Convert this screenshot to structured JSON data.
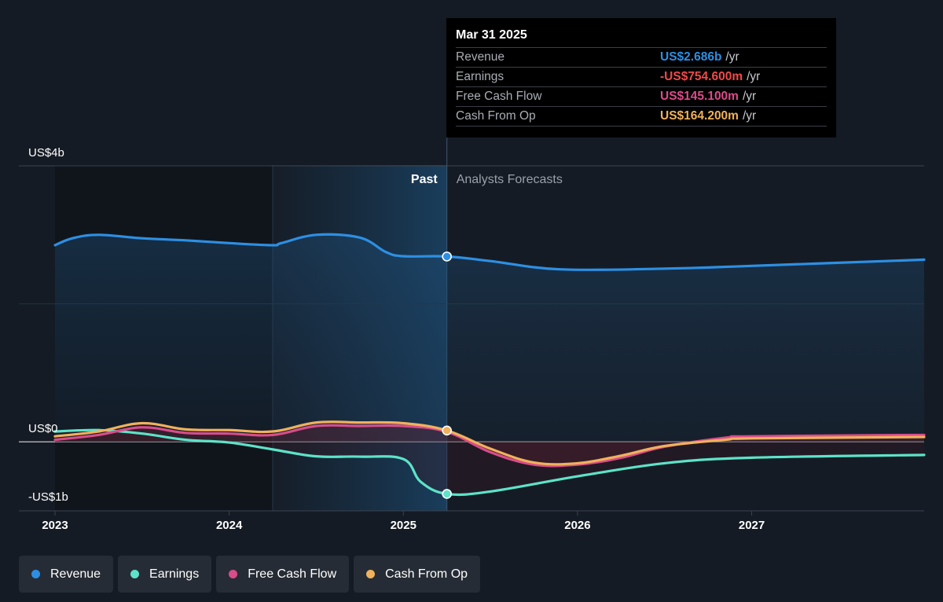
{
  "chart_data": {
    "type": "line",
    "y_axis": {
      "tick_labels": [
        "US$4b",
        "US$0",
        "-US$1b"
      ],
      "ylim": [
        -1000,
        4000
      ],
      "unit": "US$m"
    },
    "x_axis": {
      "tick_labels": [
        "2023",
        "2024",
        "2025",
        "2026",
        "2027"
      ],
      "xlim": [
        2023.0,
        2027.99
      ]
    },
    "regions": {
      "past_label": "Past",
      "forecast_label": "Analysts Forecasts",
      "divider_x": 2025.25
    },
    "series": [
      {
        "name": "Revenue",
        "color": "#2d8fe3",
        "x": [
          2023.0,
          2023.1,
          2023.25,
          2023.5,
          2023.75,
          2024.0,
          2024.25,
          2024.3,
          2024.5,
          2024.75,
          2024.9,
          2025.0,
          2025.25,
          2025.5,
          2025.9,
          2026.5,
          2027.0,
          2027.99
        ],
        "values": [
          2850,
          2950,
          3000,
          2950,
          2920,
          2880,
          2850,
          2880,
          3000,
          2960,
          2750,
          2690,
          2686,
          2620,
          2500,
          2510,
          2550,
          2640
        ]
      },
      {
        "name": "Earnings",
        "color": "#5de3c9",
        "x": [
          2023.0,
          2023.25,
          2023.5,
          2023.75,
          2024.0,
          2024.25,
          2024.5,
          2024.75,
          2025.0,
          2025.1,
          2025.25,
          2025.5,
          2026.0,
          2026.5,
          2027.0,
          2027.99
        ],
        "values": [
          150,
          170,
          120,
          30,
          -10,
          -110,
          -210,
          -215,
          -250,
          -580,
          -754.6,
          -720,
          -500,
          -310,
          -230,
          -190
        ]
      },
      {
        "name": "Free Cash Flow",
        "color": "#d94c8a",
        "x": [
          2023.0,
          2023.25,
          2023.5,
          2023.75,
          2024.0,
          2024.25,
          2024.5,
          2024.75,
          2025.0,
          2025.25,
          2025.5,
          2025.75,
          2026.0,
          2026.25,
          2026.5,
          2026.85,
          2027.0,
          2027.99
        ],
        "values": [
          30,
          100,
          210,
          130,
          120,
          100,
          230,
          230,
          230,
          145.1,
          -150,
          -330,
          -330,
          -230,
          -70,
          60,
          80,
          100
        ]
      },
      {
        "name": "Cash From Op",
        "color": "#f0b15c",
        "x": [
          2023.0,
          2023.25,
          2023.5,
          2023.75,
          2024.0,
          2024.25,
          2024.5,
          2024.75,
          2025.0,
          2025.25,
          2025.5,
          2025.75,
          2026.0,
          2026.25,
          2026.5,
          2026.85,
          2027.0,
          2027.99
        ],
        "values": [
          80,
          150,
          270,
          180,
          170,
          150,
          280,
          280,
          270,
          164.2,
          -100,
          -300,
          -310,
          -200,
          -60,
          30,
          50,
          70
        ]
      }
    ]
  },
  "tooltip": {
    "date": "Mar 31 2025",
    "rows": [
      {
        "name": "Revenue",
        "value": "US$2.686b",
        "unit": "/yr",
        "color": "#2d8fe3"
      },
      {
        "name": "Earnings",
        "value": "-US$754.600m",
        "unit": "/yr",
        "color": "#f04a4a"
      },
      {
        "name": "Free Cash Flow",
        "value": "US$145.100m",
        "unit": "/yr",
        "color": "#d94c8a"
      },
      {
        "name": "Cash From Op",
        "value": "US$164.200m",
        "unit": "/yr",
        "color": "#f0b15c"
      }
    ]
  },
  "legend": [
    {
      "label": "Revenue",
      "color": "#2d8fe3"
    },
    {
      "label": "Earnings",
      "color": "#5de3c9"
    },
    {
      "label": "Free Cash Flow",
      "color": "#d94c8a"
    },
    {
      "label": "Cash From Op",
      "color": "#f0b15c"
    }
  ]
}
